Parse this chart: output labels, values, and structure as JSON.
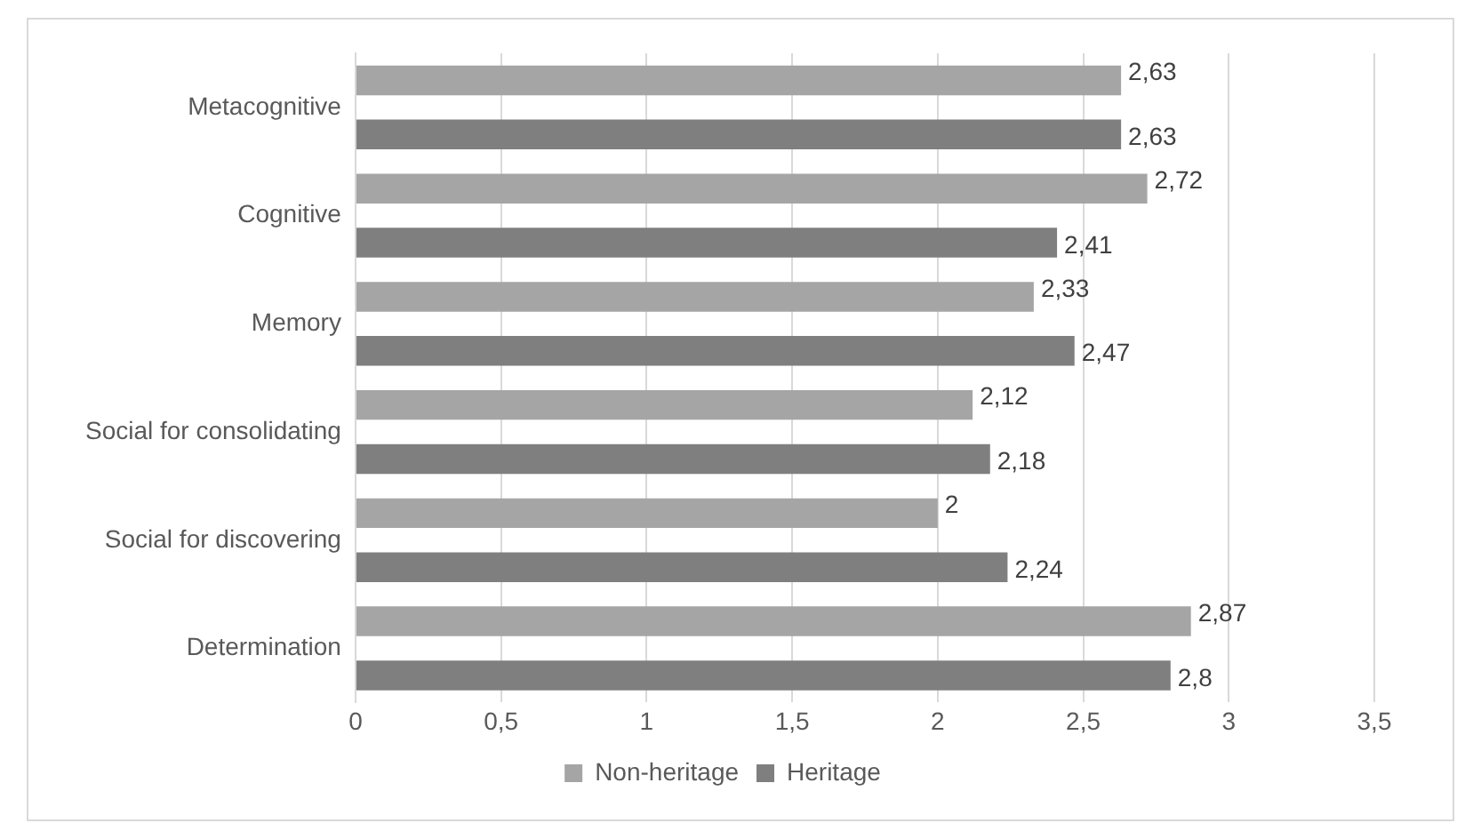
{
  "chart_data": {
    "type": "bar",
    "orientation": "horizontal",
    "categories": [
      "Metacognitive",
      "Cognitive",
      "Memory",
      "Social for consolidating",
      "Social for discovering",
      "Determination"
    ],
    "series": [
      {
        "name": "Non-heritage",
        "color": "#a5a5a5",
        "values": [
          2.63,
          2.72,
          2.33,
          2.12,
          2,
          2.87
        ],
        "value_labels": [
          "2,63",
          "2,72",
          "2,33",
          "2,12",
          "2",
          "2,87"
        ]
      },
      {
        "name": "Heritage",
        "color": "#7f7f7f",
        "values": [
          2.63,
          2.41,
          2.47,
          2.18,
          2.24,
          2.8
        ],
        "value_labels": [
          "2,63",
          "2,41",
          "2,47",
          "2,18",
          "2,24",
          "2,8"
        ]
      }
    ],
    "xlim": [
      0,
      3.5
    ],
    "xticks": [
      0,
      {
        "value": 0.5,
        "label": "0,5"
      },
      1,
      {
        "value": 1.5,
        "label": "1,5"
      },
      2,
      {
        "value": 2.5,
        "label": "2,5"
      },
      3,
      {
        "value": 3.5,
        "label": "3,5"
      }
    ],
    "grid": "x",
    "legend": "bottom"
  }
}
